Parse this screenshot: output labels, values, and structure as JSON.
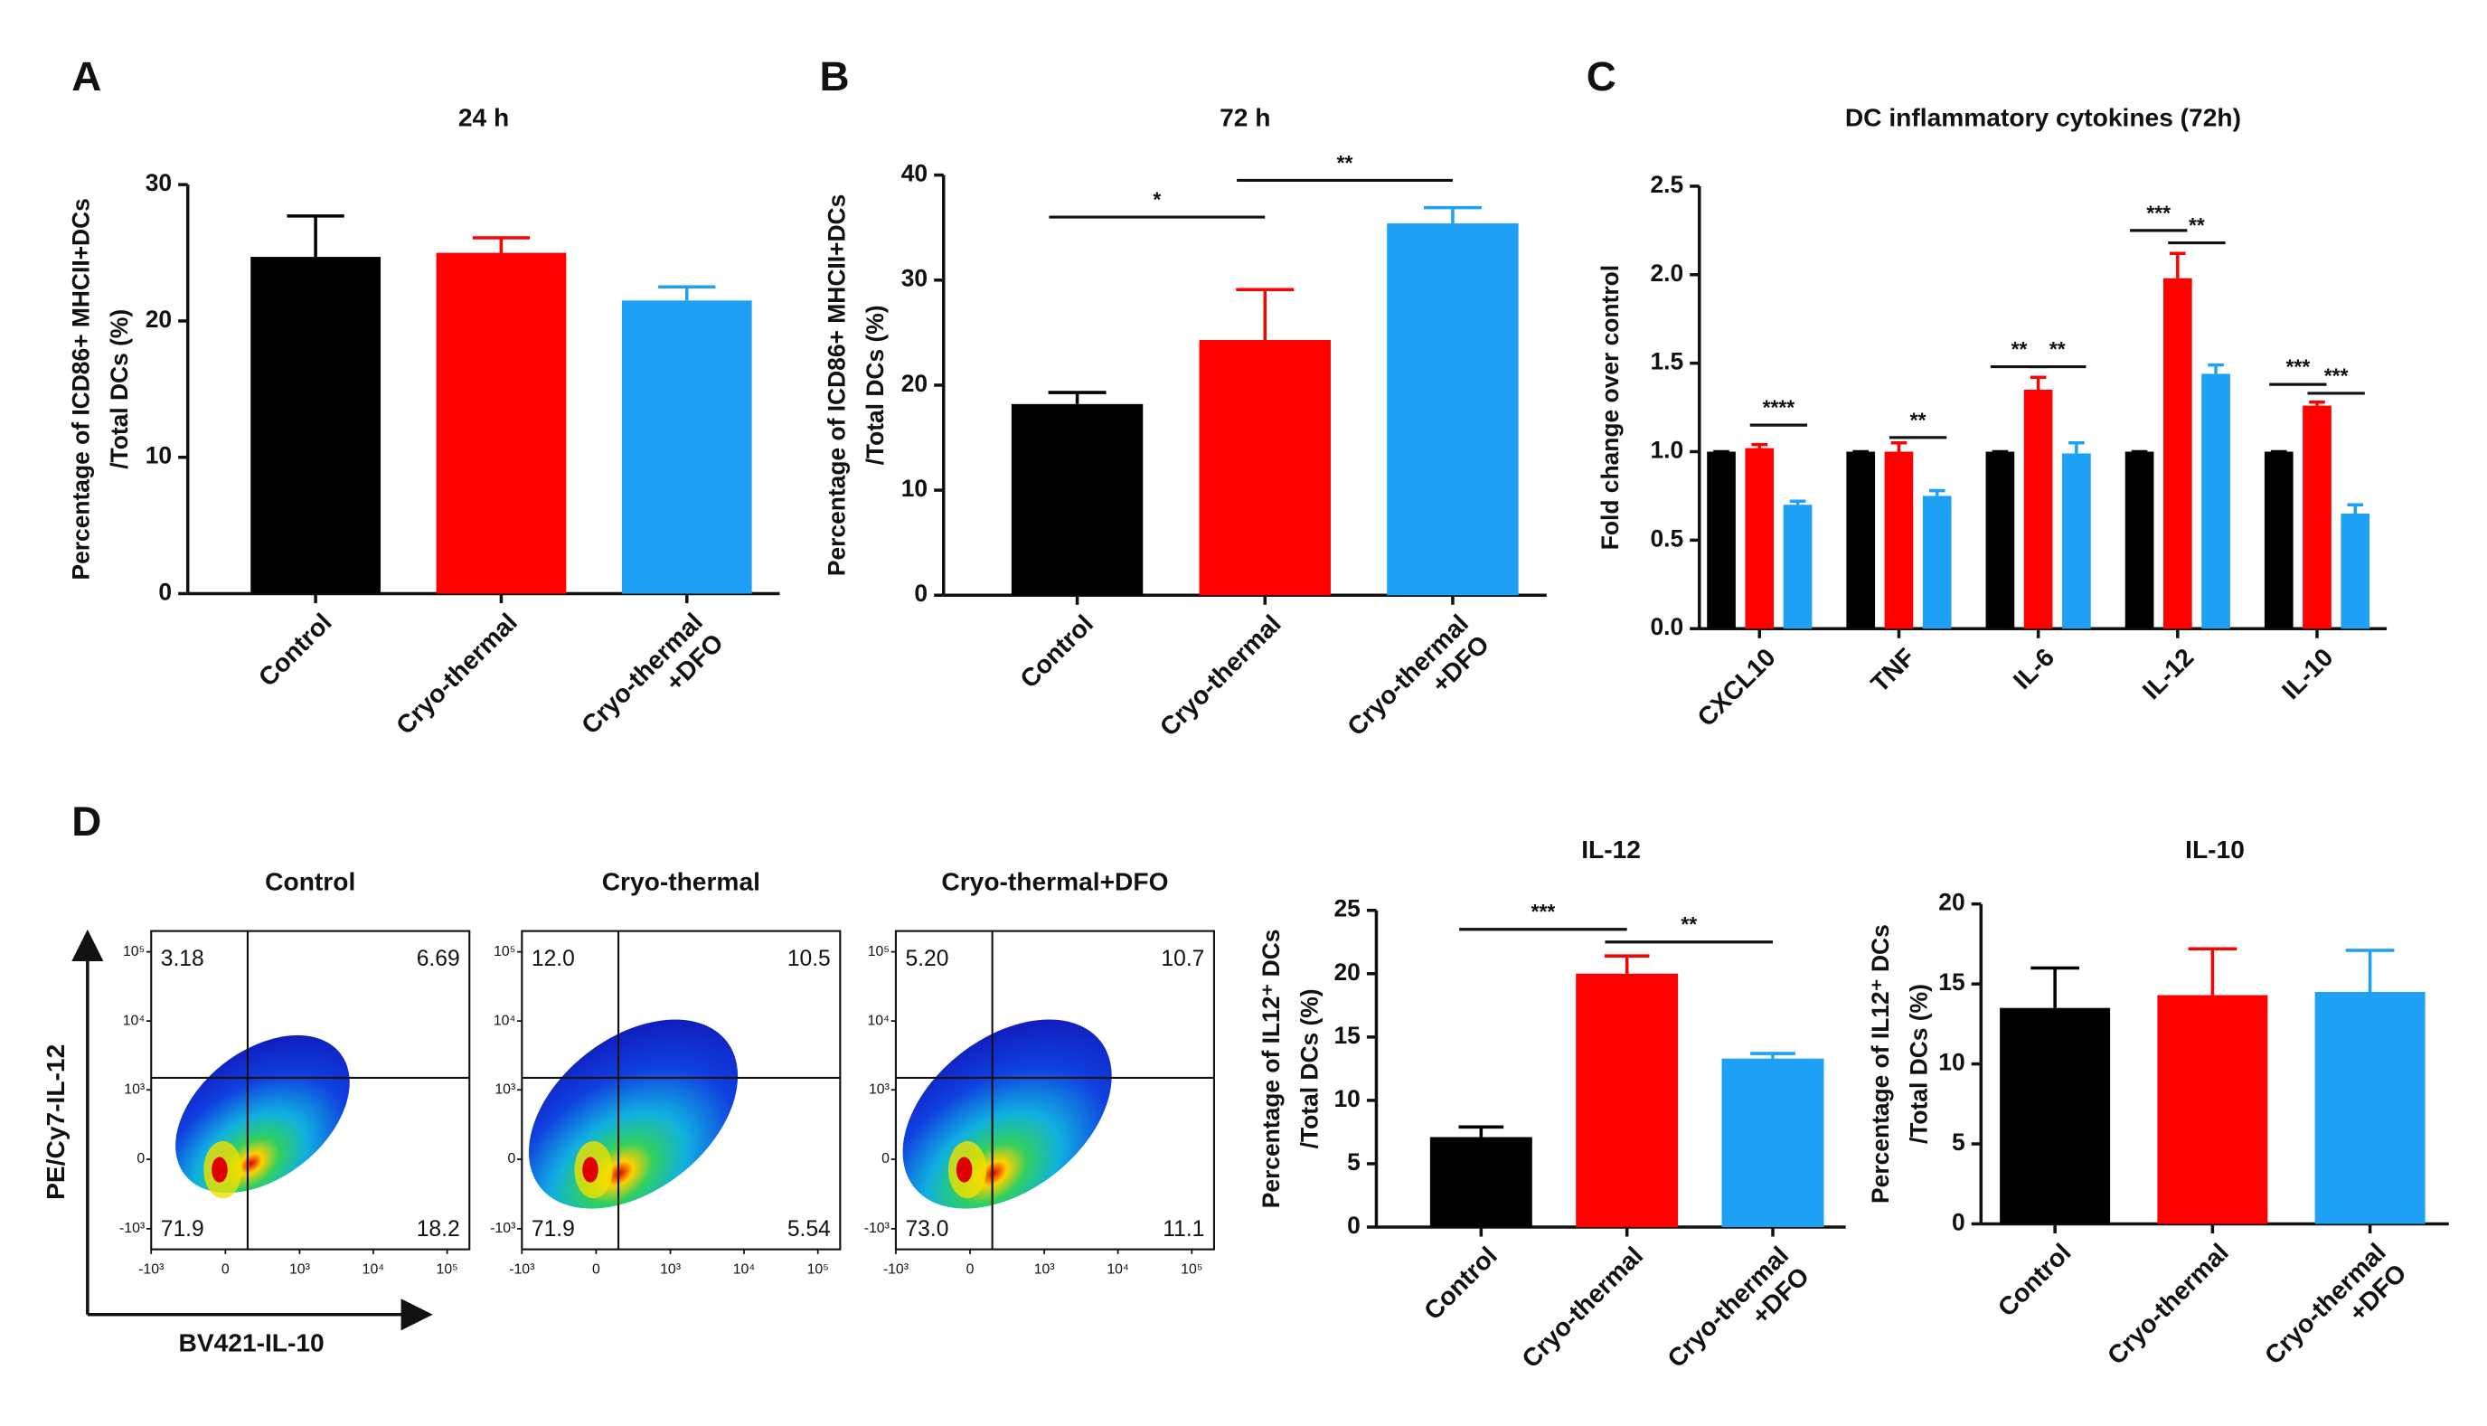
{
  "chart_data": [
    {
      "type": "bar",
      "panel": "A",
      "title": "24 h",
      "ylabel": [
        "Percentage of ICD86+ MHCII+DCs",
        "/Total DCs (%)"
      ],
      "categories": [
        "Control",
        "Cryo-thermal",
        "Cryo-thermal\n+DFO"
      ],
      "values": [
        24.7,
        25.0,
        21.5
      ],
      "errors": [
        3.0,
        1.1,
        1.0
      ],
      "colors": [
        "#000000",
        "#ff0000",
        "#1ea0f5"
      ],
      "ylim": [
        0,
        30
      ],
      "yticks": [
        0,
        10,
        20,
        30
      ]
    },
    {
      "type": "bar",
      "panel": "B",
      "title": "72 h",
      "ylabel": [
        "Percentage of ICD86+ MHCII+DCs",
        "/Total DCs (%)"
      ],
      "categories": [
        "Control",
        "Cryo-thermal",
        "Cryo-thermal\n+DFO"
      ],
      "values": [
        18.2,
        24.3,
        35.4
      ],
      "errors": [
        1.1,
        4.8,
        1.5
      ],
      "colors": [
        "#000000",
        "#ff0000",
        "#1ea0f5"
      ],
      "ylim": [
        0,
        40
      ],
      "yticks": [
        0,
        10,
        20,
        30,
        40
      ],
      "significance": [
        {
          "from": 0,
          "to": 1,
          "y": 36,
          "label": "*"
        },
        {
          "from": 1,
          "to": 2,
          "y": 39.5,
          "label": "**"
        }
      ]
    },
    {
      "type": "grouped_bar",
      "panel": "C",
      "title": "DC inflammatory cytokines (72h)",
      "ylabel": [
        "Fold change over control"
      ],
      "categories": [
        "CXCL10",
        "TNF",
        "IL-6",
        "IL-12",
        "IL-10"
      ],
      "series": [
        {
          "color": "#000000",
          "values": [
            1,
            1,
            1,
            1,
            1
          ],
          "errors": [
            0,
            0,
            0,
            0,
            0
          ]
        },
        {
          "color": "#ff0000",
          "values": [
            1.02,
            1.0,
            1.35,
            1.98,
            1.26
          ],
          "errors": [
            0.02,
            0.05,
            0.07,
            0.14,
            0.02
          ]
        },
        {
          "color": "#1ea0f5",
          "values": [
            0.7,
            0.75,
            0.99,
            1.44,
            0.65
          ],
          "errors": [
            0.02,
            0.03,
            0.06,
            0.05,
            0.05
          ]
        }
      ],
      "ylim": [
        0,
        2.5
      ],
      "yticks": [
        {
          "value": 0,
          "label": "0.0"
        },
        0.5,
        {
          "value": 1,
          "label": "1.0"
        },
        1.5,
        {
          "value": 2,
          "label": "2.0"
        },
        2.5
      ],
      "significance": [
        {
          "category": 0,
          "from": 1,
          "to": 2,
          "y": 1.15,
          "label": "****"
        },
        {
          "category": 1,
          "from": 1,
          "to": 2,
          "y": 1.08,
          "label": "**"
        },
        {
          "category": 2,
          "from": 0,
          "to": 1,
          "y": 1.48,
          "label": "**"
        },
        {
          "category": 2,
          "from": 1,
          "to": 2,
          "y": 1.48,
          "label": "**"
        },
        {
          "category": 3,
          "from": 0,
          "to": 1,
          "y": 2.25,
          "label": "***"
        },
        {
          "category": 3,
          "from": 1,
          "to": 2,
          "y": 2.18,
          "label": "**"
        },
        {
          "category": 4,
          "from": 0,
          "to": 1,
          "y": 1.38,
          "label": "***"
        },
        {
          "category": 4,
          "from": 1,
          "to": 2,
          "y": 1.33,
          "label": "***"
        }
      ]
    },
    {
      "type": "flow",
      "panel": "D",
      "ylabel": "PE/Cy7-IL-12",
      "xlabel": "BV421-IL-10",
      "plots": [
        {
          "title": "Control",
          "values": [
            3.18,
            6.69,
            71.9,
            18.2
          ]
        },
        {
          "title": "Cryo-thermal",
          "values": [
            12.0,
            10.5,
            71.9,
            5.54
          ],
          "value_labels": [
            "12.0",
            "10.5",
            "71.9",
            "5.54"
          ]
        },
        {
          "title": "Cryo-thermal+DFO",
          "values": [
            5.2,
            10.7,
            73.0,
            11.1
          ],
          "value_labels": [
            "5.20",
            "10.7",
            "73.0",
            "11.1"
          ]
        }
      ],
      "xlim": [
        -1000,
        200000
      ],
      "ylim": [
        -2000,
        200000
      ],
      "xticks": [
        {
          "value": -1000,
          "label": "-10³"
        },
        0,
        {
          "value": 1000,
          "label": "10³"
        },
        {
          "value": 10000,
          "label": "10⁴"
        },
        {
          "value": 100000,
          "label": "10⁵"
        }
      ],
      "yticks": [
        {
          "value": -1000,
          "label": "-10³"
        },
        0,
        {
          "value": 1000,
          "label": "10³"
        },
        {
          "value": 10000,
          "label": "10⁴"
        },
        {
          "value": 100000,
          "label": "10⁵"
        }
      ],
      "gate_x": 150,
      "gate_y": 1500
    },
    {
      "type": "bar",
      "title": "IL-12",
      "ylabel": [
        "Percentage of IL12⁺ DCs",
        "/Total DCs (%)"
      ],
      "categories": [
        "Control",
        "Cryo-thermal",
        "Cryo-thermal\n+DFO"
      ],
      "values": [
        7.1,
        20.0,
        13.3
      ],
      "errors": [
        0.8,
        1.4,
        0.4
      ],
      "colors": [
        "#000000",
        "#ff0000",
        "#1ea0f5"
      ],
      "ylim": [
        0,
        25
      ],
      "yticks": [
        0,
        5,
        10,
        15,
        20,
        25
      ],
      "significance": [
        {
          "from": 0,
          "to": 1,
          "y": 23.5,
          "label": "***"
        },
        {
          "from": 1,
          "to": 2,
          "y": 22.5,
          "label": "**"
        }
      ]
    },
    {
      "type": "bar",
      "title": "IL-10",
      "ylabel": [
        "Percentage of IL12⁺ DCs",
        "/Total DCs (%)"
      ],
      "categories": [
        "Control",
        "Cryo-thermal",
        "Cryo-thermal\n+DFO"
      ],
      "values": [
        13.5,
        14.3,
        14.5
      ],
      "errors": [
        2.5,
        2.9,
        2.6
      ],
      "colors": [
        "#000000",
        "#ff0000",
        "#1ea0f5"
      ],
      "ylim": [
        0,
        20
      ],
      "yticks": [
        0,
        5,
        10,
        15,
        20
      ]
    }
  ]
}
